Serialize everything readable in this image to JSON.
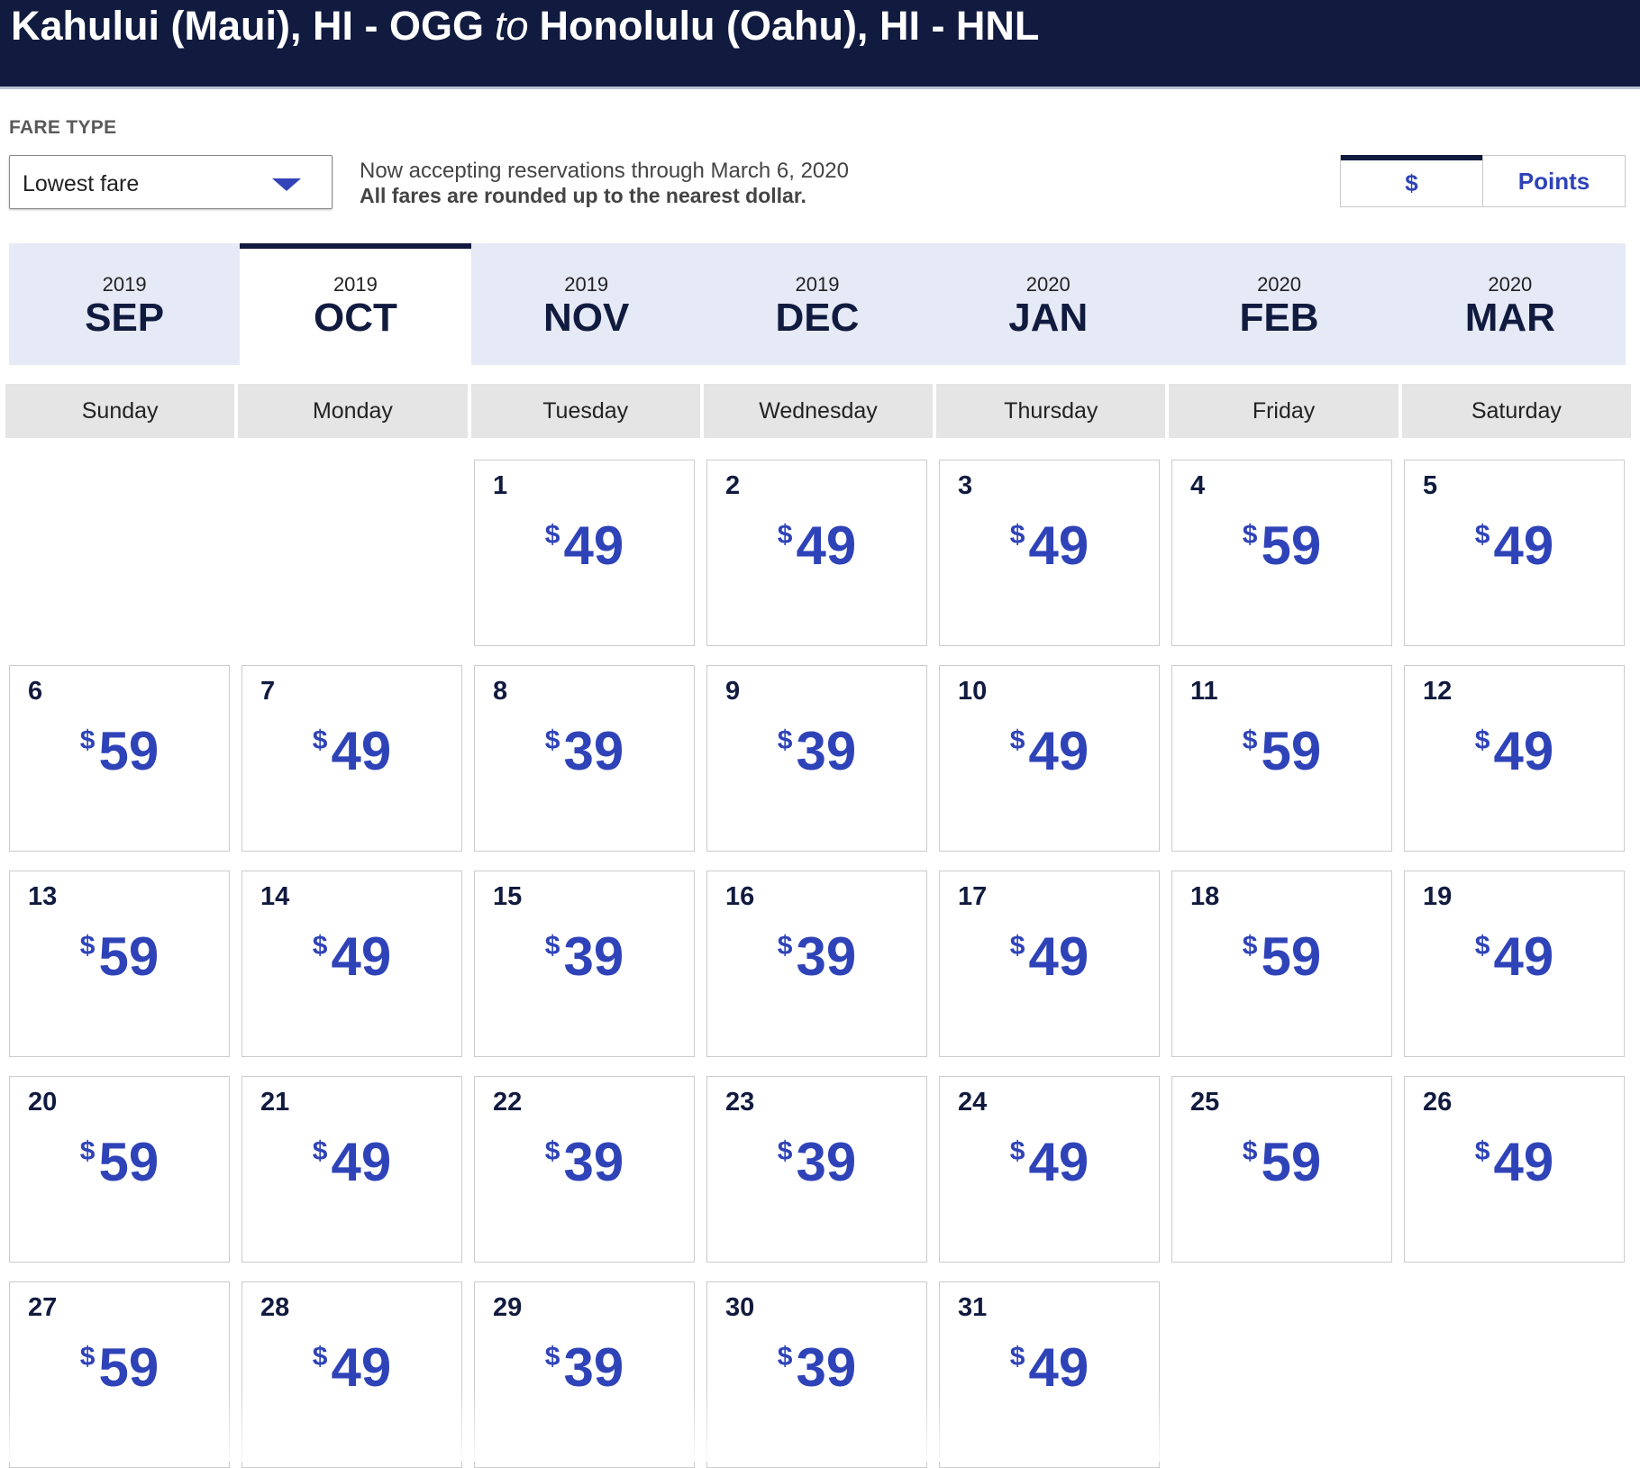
{
  "header": {
    "origin": "Kahului (Maui), HI - OGG",
    "connector": "to",
    "destination": "Honolulu (Oahu), HI - HNL"
  },
  "fare_type": {
    "label": "FARE TYPE",
    "selected": "Lowest fare"
  },
  "notice": {
    "line1": "Now accepting reservations through March 6, 2020",
    "line2": "All fares are rounded up to the nearest dollar."
  },
  "currency_toggle": {
    "options": [
      "$",
      "Points"
    ],
    "selected": "$"
  },
  "months": [
    {
      "year": "2019",
      "month": "SEP",
      "active": false
    },
    {
      "year": "2019",
      "month": "OCT",
      "active": true
    },
    {
      "year": "2019",
      "month": "NOV",
      "active": false
    },
    {
      "year": "2019",
      "month": "DEC",
      "active": false
    },
    {
      "year": "2020",
      "month": "JAN",
      "active": false
    },
    {
      "year": "2020",
      "month": "FEB",
      "active": false
    },
    {
      "year": "2020",
      "month": "MAR",
      "active": false
    }
  ],
  "weekdays": [
    "Sunday",
    "Monday",
    "Tuesday",
    "Wednesday",
    "Thursday",
    "Friday",
    "Saturday"
  ],
  "calendar": {
    "currency_symbol": "$",
    "first_weekday_index": 2,
    "days": [
      {
        "day": "1",
        "price": "49"
      },
      {
        "day": "2",
        "price": "49"
      },
      {
        "day": "3",
        "price": "49"
      },
      {
        "day": "4",
        "price": "59"
      },
      {
        "day": "5",
        "price": "49"
      },
      {
        "day": "6",
        "price": "59"
      },
      {
        "day": "7",
        "price": "49"
      },
      {
        "day": "8",
        "price": "39"
      },
      {
        "day": "9",
        "price": "39"
      },
      {
        "day": "10",
        "price": "49"
      },
      {
        "day": "11",
        "price": "59"
      },
      {
        "day": "12",
        "price": "49"
      },
      {
        "day": "13",
        "price": "59"
      },
      {
        "day": "14",
        "price": "49"
      },
      {
        "day": "15",
        "price": "39"
      },
      {
        "day": "16",
        "price": "39"
      },
      {
        "day": "17",
        "price": "49"
      },
      {
        "day": "18",
        "price": "59"
      },
      {
        "day": "19",
        "price": "49"
      },
      {
        "day": "20",
        "price": "59"
      },
      {
        "day": "21",
        "price": "49"
      },
      {
        "day": "22",
        "price": "39"
      },
      {
        "day": "23",
        "price": "39"
      },
      {
        "day": "24",
        "price": "49"
      },
      {
        "day": "25",
        "price": "59"
      },
      {
        "day": "26",
        "price": "49"
      },
      {
        "day": "27",
        "price": "59"
      },
      {
        "day": "28",
        "price": "49"
      },
      {
        "day": "29",
        "price": "39"
      },
      {
        "day": "30",
        "price": "39"
      },
      {
        "day": "31",
        "price": "49"
      }
    ]
  },
  "colors": {
    "header_bg": "#111b3f",
    "price": "#2f43b8",
    "month_bar": "#e6eaf6"
  }
}
